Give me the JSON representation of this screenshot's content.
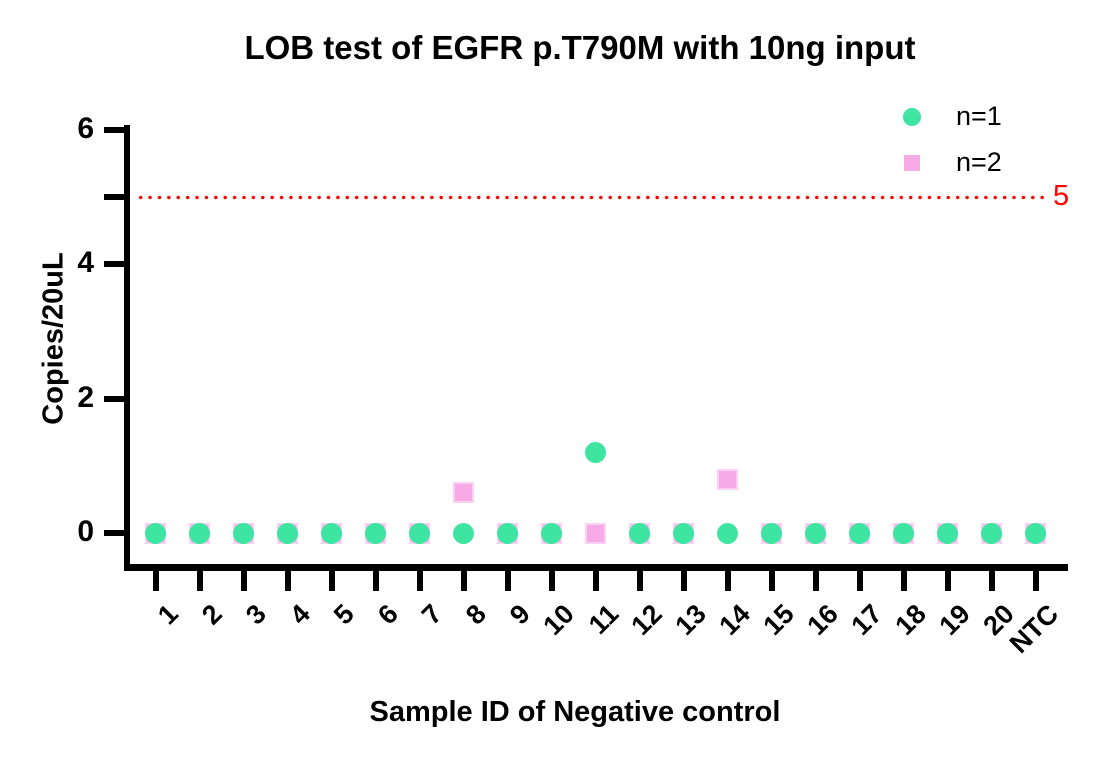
{
  "chart_data": {
    "type": "scatter",
    "title": "LOB test of EGFR p.T790M with 10ng input",
    "xlabel": "Sample ID of Negative control",
    "ylabel": "Copies/20uL",
    "categories": [
      "1",
      "2",
      "3",
      "4",
      "5",
      "6",
      "7",
      "8",
      "9",
      "10",
      "11",
      "12",
      "13",
      "14",
      "15",
      "16",
      "17",
      "18",
      "19",
      "20",
      "NTC"
    ],
    "series": [
      {
        "name": "n=1",
        "marker": "circle",
        "color": "#3EE5A1",
        "values": [
          0,
          0,
          0,
          0,
          0,
          0,
          0,
          0,
          0,
          0,
          1.2,
          0,
          0,
          0,
          0,
          0,
          0,
          0,
          0,
          0,
          0
        ]
      },
      {
        "name": "n=2",
        "marker": "square",
        "color": "#F7AAE6",
        "border_color": "#FBD0F2",
        "values": [
          0,
          0,
          0,
          0,
          0,
          0,
          0,
          0.6,
          0,
          0,
          0,
          0,
          0,
          0.8,
          0,
          0,
          0,
          0,
          0,
          0,
          0
        ]
      }
    ],
    "threshold_line": {
      "value": 5,
      "label": "5",
      "color": "#FF0000",
      "style": "dotted"
    },
    "ylim": [
      0,
      6
    ],
    "yticks": [
      0,
      2,
      4,
      6
    ],
    "legend": {
      "position": "top-right",
      "entries": [
        "n=1",
        "n=2"
      ]
    },
    "grid": false,
    "axis_color": "#000000",
    "text_color": "#000000",
    "background": "#FFFFFF"
  }
}
